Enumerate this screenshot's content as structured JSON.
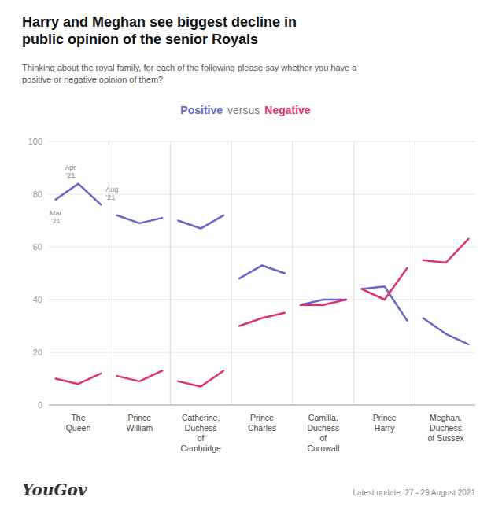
{
  "chart_data": {
    "type": "line",
    "title": "Harry and Meghan see biggest decline in\npublic opinion of the senior Royals",
    "subtitle": "Thinking about the royal family, for each of the following please say whether you have a\npositive or negative opinion of them?",
    "categories": [
      "The\nQueen",
      "Prince\nWilliam",
      "Catherine,\nDuchess\nof\nCambridge",
      "Prince\nCharles",
      "Camilla,\nDuchess\nof\nCornwall",
      "Prince\nHarry",
      "Meghan,\nDuchess\nof Sussex"
    ],
    "series": [
      {
        "name": "Positive",
        "color": "#6666cc",
        "values": [
          [
            78,
            84,
            76
          ],
          [
            72,
            69,
            71
          ],
          [
            70,
            67,
            72
          ],
          [
            48,
            53,
            50
          ],
          [
            38,
            40,
            40
          ],
          [
            44,
            45,
            32
          ],
          [
            33,
            27,
            23
          ]
        ]
      },
      {
        "name": "Negative",
        "color": "#e03070",
        "values": [
          [
            10,
            8,
            12
          ],
          [
            11,
            9,
            13
          ],
          [
            9,
            7,
            13
          ],
          [
            30,
            33,
            35
          ],
          [
            38,
            38,
            40
          ],
          [
            44,
            40,
            52
          ],
          [
            55,
            54,
            63
          ]
        ]
      }
    ],
    "legend": "top",
    "legend_separator": "versus",
    "annotations": [
      "Mar\n’21",
      "Apr\n’21",
      "Aug\n’21"
    ],
    "source": "YouGov",
    "footnote": "Latest update: 27 - 29 August 2021",
    "ylim": [
      0,
      100
    ],
    "yticks": [
      0,
      20,
      40,
      60,
      80,
      100
    ],
    "grid": true
  }
}
